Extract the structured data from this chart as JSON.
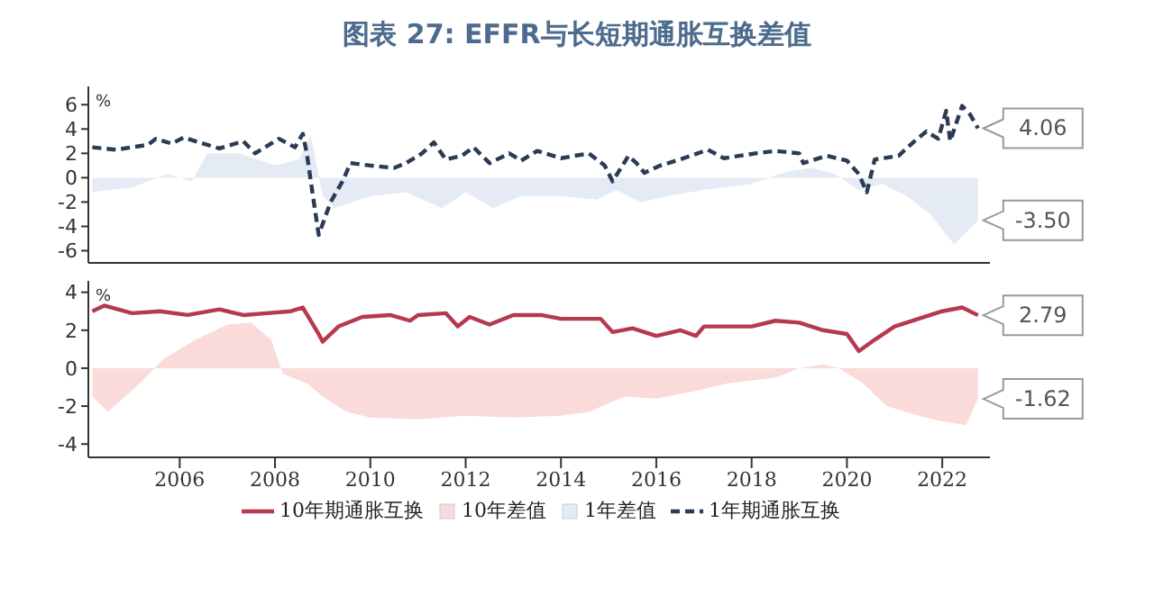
{
  "chart_data": [
    {
      "type": "line",
      "title": "图表 27: EFFR与长短期通胀互换差值",
      "ylabel": "%",
      "xlim": [
        "2004-02",
        "2023-01"
      ],
      "xticks": [
        "2006",
        "2008",
        "2010",
        "2012",
        "2014",
        "2016",
        "2018",
        "2020",
        "2022"
      ],
      "ylim": [
        -7,
        7.5
      ],
      "yticks": [
        -6,
        -4,
        -2,
        0,
        2,
        4,
        6
      ],
      "tick_labels": "y",
      "legend": "bottom",
      "series": [
        {
          "name": "1年差值",
          "type": "area",
          "color": "#e4ebf4",
          "x": [
            "2004-03",
            "2005-01",
            "2005-10",
            "2006-04",
            "2006-08",
            "2007-04",
            "2008-01",
            "2008-07",
            "2008-10",
            "2009-01",
            "2009-04",
            "2010-01",
            "2010-10",
            "2011-07",
            "2012-01",
            "2012-08",
            "2013-03",
            "2014-01",
            "2014-10",
            "2015-03",
            "2015-09",
            "2016-04",
            "2017-01",
            "2018-01",
            "2018-10",
            "2019-04",
            "2019-10",
            "2020-04",
            "2020-10",
            "2021-04",
            "2021-10",
            "2022-04",
            "2022-07",
            "2022-10"
          ],
          "values": [
            -1.2,
            -0.8,
            0.3,
            -0.3,
            2.0,
            2.0,
            1.0,
            1.5,
            3.5,
            -1.5,
            -2.5,
            -1.5,
            -1.2,
            -2.5,
            -1.2,
            -2.5,
            -1.5,
            -1.5,
            -1.8,
            -1.0,
            -2.0,
            -1.5,
            -1.0,
            -0.5,
            0.5,
            0.8,
            0.3,
            -1.0,
            -0.5,
            -1.5,
            -3.0,
            -5.5,
            -4.5,
            -3.5
          ],
          "value_labels": [
            null,
            null,
            null,
            null,
            null,
            null,
            null,
            null,
            null,
            null,
            null,
            null,
            null,
            null,
            null,
            null,
            null,
            null,
            null,
            null,
            null,
            null,
            null,
            null,
            null,
            null,
            null,
            null,
            null,
            null,
            null,
            null,
            null,
            "-3.50"
          ]
        },
        {
          "name": "1年期通胀互换",
          "line_style": "dashed",
          "color": "#2b3a55",
          "x": [
            "2004-03",
            "2004-09",
            "2005-05",
            "2005-07",
            "2005-11",
            "2006-02",
            "2006-06",
            "2006-11",
            "2007-05",
            "2007-08",
            "2007-11",
            "2008-02",
            "2008-06",
            "2008-08",
            "2008-09",
            "2008-11",
            "2008-12",
            "2009-03",
            "2009-06",
            "2009-08",
            "2010-01",
            "2010-07",
            "2010-10",
            "2011-02",
            "2011-05",
            "2011-08",
            "2011-12",
            "2012-03",
            "2012-07",
            "2012-12",
            "2013-03",
            "2013-07",
            "2014-01",
            "2014-08",
            "2014-12",
            "2015-02",
            "2015-06",
            "2015-08",
            "2015-10",
            "2016-02",
            "2016-07",
            "2017-02",
            "2017-06",
            "2018-02",
            "2018-07",
            "2019-01",
            "2019-02",
            "2019-08",
            "2020-01",
            "2020-04",
            "2020-06",
            "2020-08",
            "2021-02",
            "2021-06",
            "2021-09",
            "2021-12",
            "2022-02",
            "2022-03",
            "2022-06",
            "2022-08",
            "2022-10"
          ],
          "values": [
            2.5,
            2.3,
            2.7,
            3.2,
            2.8,
            3.3,
            2.9,
            2.4,
            3.0,
            2.0,
            2.6,
            3.2,
            2.5,
            3.6,
            2.0,
            -2.5,
            -4.7,
            -2.0,
            -0.3,
            1.2,
            1.0,
            0.8,
            1.2,
            2.0,
            2.9,
            1.5,
            1.8,
            2.5,
            1.2,
            2.0,
            1.4,
            2.2,
            1.6,
            2.0,
            1.0,
            -0.3,
            1.8,
            1.2,
            0.4,
            1.0,
            1.5,
            2.3,
            1.6,
            2.0,
            2.2,
            2.0,
            1.2,
            1.8,
            1.4,
            0.3,
            -1.2,
            1.5,
            1.8,
            3.0,
            3.8,
            3.2,
            5.5,
            3.0,
            5.9,
            5.2,
            4.06
          ],
          "value_labels": [
            null,
            null,
            null,
            null,
            null,
            null,
            null,
            null,
            null,
            null,
            null,
            null,
            null,
            null,
            null,
            null,
            null,
            null,
            null,
            null,
            null,
            null,
            null,
            null,
            null,
            null,
            null,
            null,
            null,
            null,
            null,
            null,
            null,
            null,
            null,
            null,
            null,
            null,
            null,
            null,
            null,
            null,
            null,
            null,
            null,
            null,
            null,
            null,
            null,
            null,
            null,
            null,
            null,
            null,
            null,
            null,
            null,
            null,
            null,
            null,
            "4.06"
          ]
        }
      ]
    },
    {
      "type": "line",
      "ylabel": "%",
      "xlim": [
        "2004-02",
        "2023-01"
      ],
      "xticks": [
        "2006",
        "2008",
        "2010",
        "2012",
        "2014",
        "2016",
        "2018",
        "2020",
        "2022"
      ],
      "ylim": [
        -4.7,
        4.6
      ],
      "yticks": [
        -4,
        -2,
        0,
        2,
        4
      ],
      "legend": "bottom",
      "series": [
        {
          "name": "10年期通胀互换",
          "line_style": "solid",
          "color": "#b5394f",
          "x": [
            "2004-03",
            "2004-06",
            "2005-01",
            "2005-08",
            "2006-03",
            "2006-11",
            "2007-05",
            "2007-11",
            "2008-05",
            "2008-08",
            "2008-12",
            "2009-01",
            "2009-05",
            "2009-11",
            "2010-06",
            "2010-11",
            "2011-01",
            "2011-08",
            "2011-11",
            "2012-02",
            "2012-07",
            "2013-01",
            "2013-08",
            "2014-01",
            "2014-11",
            "2015-02",
            "2015-07",
            "2016-01",
            "2016-07",
            "2016-11",
            "2017-01",
            "2017-07",
            "2018-01",
            "2018-07",
            "2019-01",
            "2019-07",
            "2020-01",
            "2020-04",
            "2020-08",
            "2021-01",
            "2021-07",
            "2022-01",
            "2022-06",
            "2022-10"
          ],
          "values": [
            3.0,
            3.3,
            2.9,
            3.0,
            2.8,
            3.1,
            2.8,
            2.9,
            3.0,
            3.2,
            1.8,
            1.4,
            2.2,
            2.7,
            2.8,
            2.5,
            2.8,
            2.9,
            2.2,
            2.7,
            2.3,
            2.8,
            2.8,
            2.6,
            2.6,
            1.9,
            2.1,
            1.7,
            2.0,
            1.7,
            2.2,
            2.2,
            2.2,
            2.5,
            2.4,
            2.0,
            1.8,
            0.9,
            1.5,
            2.2,
            2.6,
            3.0,
            3.2,
            2.79
          ],
          "value_labels": [
            null,
            null,
            null,
            null,
            null,
            null,
            null,
            null,
            null,
            null,
            null,
            null,
            null,
            null,
            null,
            null,
            null,
            null,
            null,
            null,
            null,
            null,
            null,
            null,
            null,
            null,
            null,
            null,
            null,
            null,
            null,
            null,
            null,
            null,
            null,
            null,
            null,
            null,
            null,
            null,
            null,
            null,
            null,
            "2.79"
          ]
        },
        {
          "name": "10年差值",
          "type": "area",
          "color": "#fbdada",
          "x": [
            "2004-03",
            "2004-07",
            "2005-03",
            "2005-09",
            "2006-05",
            "2007-01",
            "2007-07",
            "2007-12",
            "2008-02",
            "2008-03",
            "2008-09",
            "2009-01",
            "2009-07",
            "2010-01",
            "2011-01",
            "2012-01",
            "2013-01",
            "2014-01",
            "2014-08",
            "2015-05",
            "2016-01",
            "2016-11",
            "2017-07",
            "2018-07",
            "2019-01",
            "2019-07",
            "2019-11",
            "2020-05",
            "2020-11",
            "2021-07",
            "2022-01",
            "2022-07",
            "2022-10"
          ],
          "values": [
            -1.5,
            -2.3,
            -0.8,
            0.5,
            1.5,
            2.3,
            2.4,
            1.5,
            0.3,
            -0.3,
            -0.8,
            -1.5,
            -2.3,
            -2.6,
            -2.7,
            -2.5,
            -2.6,
            -2.5,
            -2.3,
            -1.5,
            -1.6,
            -1.2,
            -0.8,
            -0.5,
            0.0,
            0.2,
            0.0,
            -0.8,
            -2.0,
            -2.5,
            -2.8,
            -3.0,
            -1.62
          ],
          "value_labels": [
            null,
            null,
            null,
            null,
            null,
            null,
            null,
            null,
            null,
            null,
            null,
            null,
            null,
            null,
            null,
            null,
            null,
            null,
            null,
            null,
            null,
            null,
            null,
            null,
            null,
            null,
            null,
            null,
            null,
            null,
            null,
            null,
            "-1.62"
          ]
        }
      ]
    }
  ]
}
